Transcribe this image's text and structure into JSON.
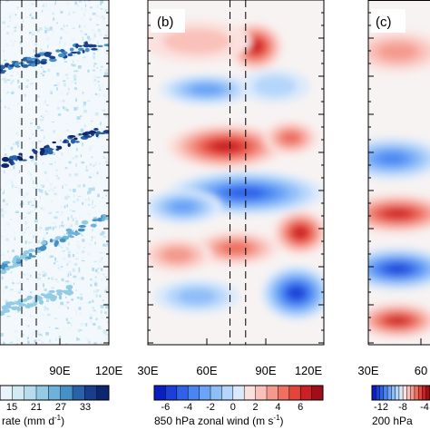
{
  "chart_data": [
    {
      "type": "heatmap",
      "panel_label": "",
      "xticks": [
        "",
        "90E",
        "120E"
      ],
      "x_range_deg": [
        30,
        120
      ],
      "visible_x_range_deg": [
        60,
        120
      ],
      "dashed_lines_x": [
        72,
        80
      ],
      "colorbar": {
        "tick_labels": [
          "15",
          "21",
          "27",
          "33"
        ],
        "title": "rate (mm d",
        "title_exponent": "-1",
        "title_close": ")",
        "colors": [
          "#e9f4fa",
          "#d2eaf4",
          "#b6dcee",
          "#93cbe5",
          "#6db2d8",
          "#4590c4",
          "#2a62a8",
          "#1a3d8c",
          "#0d2670"
        ]
      },
      "bands": [
        {
          "x0": 60,
          "x1": 120,
          "y0": 0.2,
          "y1": 0.12,
          "value": 27
        },
        {
          "x0": 60,
          "x1": 120,
          "y0": 0.48,
          "y1": 0.37,
          "value": 33
        },
        {
          "x0": 60,
          "x1": 120,
          "y0": 0.78,
          "y1": 0.62,
          "value": 21
        },
        {
          "x0": 60,
          "x1": 100,
          "y0": 0.9,
          "y1": 0.84,
          "value": 15
        }
      ]
    },
    {
      "type": "heatmap",
      "panel_label": "(b)",
      "xticks": [
        "30E",
        "60E",
        "90E",
        "120E"
      ],
      "x_range_deg": [
        30,
        120
      ],
      "dashed_lines_x": [
        72,
        80
      ],
      "colorbar": {
        "tick_labels": [
          "-6",
          "-4",
          "-2",
          "0",
          "2",
          "4",
          "6"
        ],
        "levels": [
          -7,
          -6,
          -5,
          -4,
          -3,
          -2,
          -1,
          0,
          1,
          2,
          3,
          4,
          5,
          6,
          7
        ],
        "title": "850 hPa zonal wind (m s",
        "title_exponent": "-1",
        "title_close": ")",
        "colors": [
          "#0a1fc2",
          "#1c3fd8",
          "#2f62e8",
          "#4a85f2",
          "#6ba3f7",
          "#8fbef7",
          "#b5d6fa",
          "#dbeafb",
          "#fbe1de",
          "#f9c1b9",
          "#f49a8d",
          "#ee7062",
          "#e2453a",
          "#cb2126",
          "#9e0f1a"
        ]
      },
      "blobs": [
        {
          "x": 85,
          "y": 0.135,
          "rx": 14,
          "ry": 0.07,
          "value": 5.5
        },
        {
          "x": 55,
          "y": 0.12,
          "rx": 28,
          "ry": 0.06,
          "value": 1.5
        },
        {
          "x": 60,
          "y": 0.26,
          "rx": 24,
          "ry": 0.045,
          "value": -3.5
        },
        {
          "x": 95,
          "y": 0.25,
          "rx": 18,
          "ry": 0.05,
          "value": -2
        },
        {
          "x": 70,
          "y": 0.425,
          "rx": 30,
          "ry": 0.065,
          "value": 5.5
        },
        {
          "x": 103,
          "y": 0.4,
          "rx": 14,
          "ry": 0.05,
          "value": 3.5
        },
        {
          "x": 80,
          "y": 0.56,
          "rx": 40,
          "ry": 0.065,
          "value": -6
        },
        {
          "x": 48,
          "y": 0.6,
          "rx": 20,
          "ry": 0.05,
          "value": -4
        },
        {
          "x": 108,
          "y": 0.675,
          "rx": 14,
          "ry": 0.065,
          "value": 6
        },
        {
          "x": 75,
          "y": 0.72,
          "rx": 22,
          "ry": 0.05,
          "value": 3.5
        },
        {
          "x": 45,
          "y": 0.74,
          "rx": 18,
          "ry": 0.05,
          "value": 2.5
        },
        {
          "x": 106,
          "y": 0.85,
          "rx": 18,
          "ry": 0.08,
          "value": -7
        },
        {
          "x": 55,
          "y": 0.86,
          "rx": 22,
          "ry": 0.05,
          "value": -3
        }
      ]
    },
    {
      "type": "heatmap",
      "panel_label": "(c)",
      "xticks": [
        "30E",
        "60"
      ],
      "x_range_deg": [
        30,
        120
      ],
      "visible_x_range_deg": [
        30,
        50
      ],
      "colorbar": {
        "tick_labels": [
          "-12",
          "-8",
          "-4"
        ],
        "title": "200 hPa",
        "colors": [
          "#0a1fc2",
          "#1c3fd8",
          "#2f62e8",
          "#4a85f2",
          "#6ba3f7",
          "#8fbef7",
          "#b5d6fa",
          "#dbeafb",
          "#fbe1de",
          "#f9c1b9",
          "#f49a8d",
          "#ee7062",
          "#e2453a",
          "#cb2126",
          "#9e0f1a"
        ]
      },
      "blobs": [
        {
          "x": 40,
          "y": 0.15,
          "rx": 16,
          "ry": 0.06,
          "value": 3
        },
        {
          "x": 38,
          "y": 0.46,
          "rx": 18,
          "ry": 0.06,
          "value": -5
        },
        {
          "x": 40,
          "y": 0.62,
          "rx": 18,
          "ry": 0.055,
          "value": 5.5
        },
        {
          "x": 40,
          "y": 0.78,
          "rx": 18,
          "ry": 0.06,
          "value": -6.5
        },
        {
          "x": 40,
          "y": 0.93,
          "rx": 14,
          "ry": 0.05,
          "value": 6
        }
      ]
    }
  ]
}
